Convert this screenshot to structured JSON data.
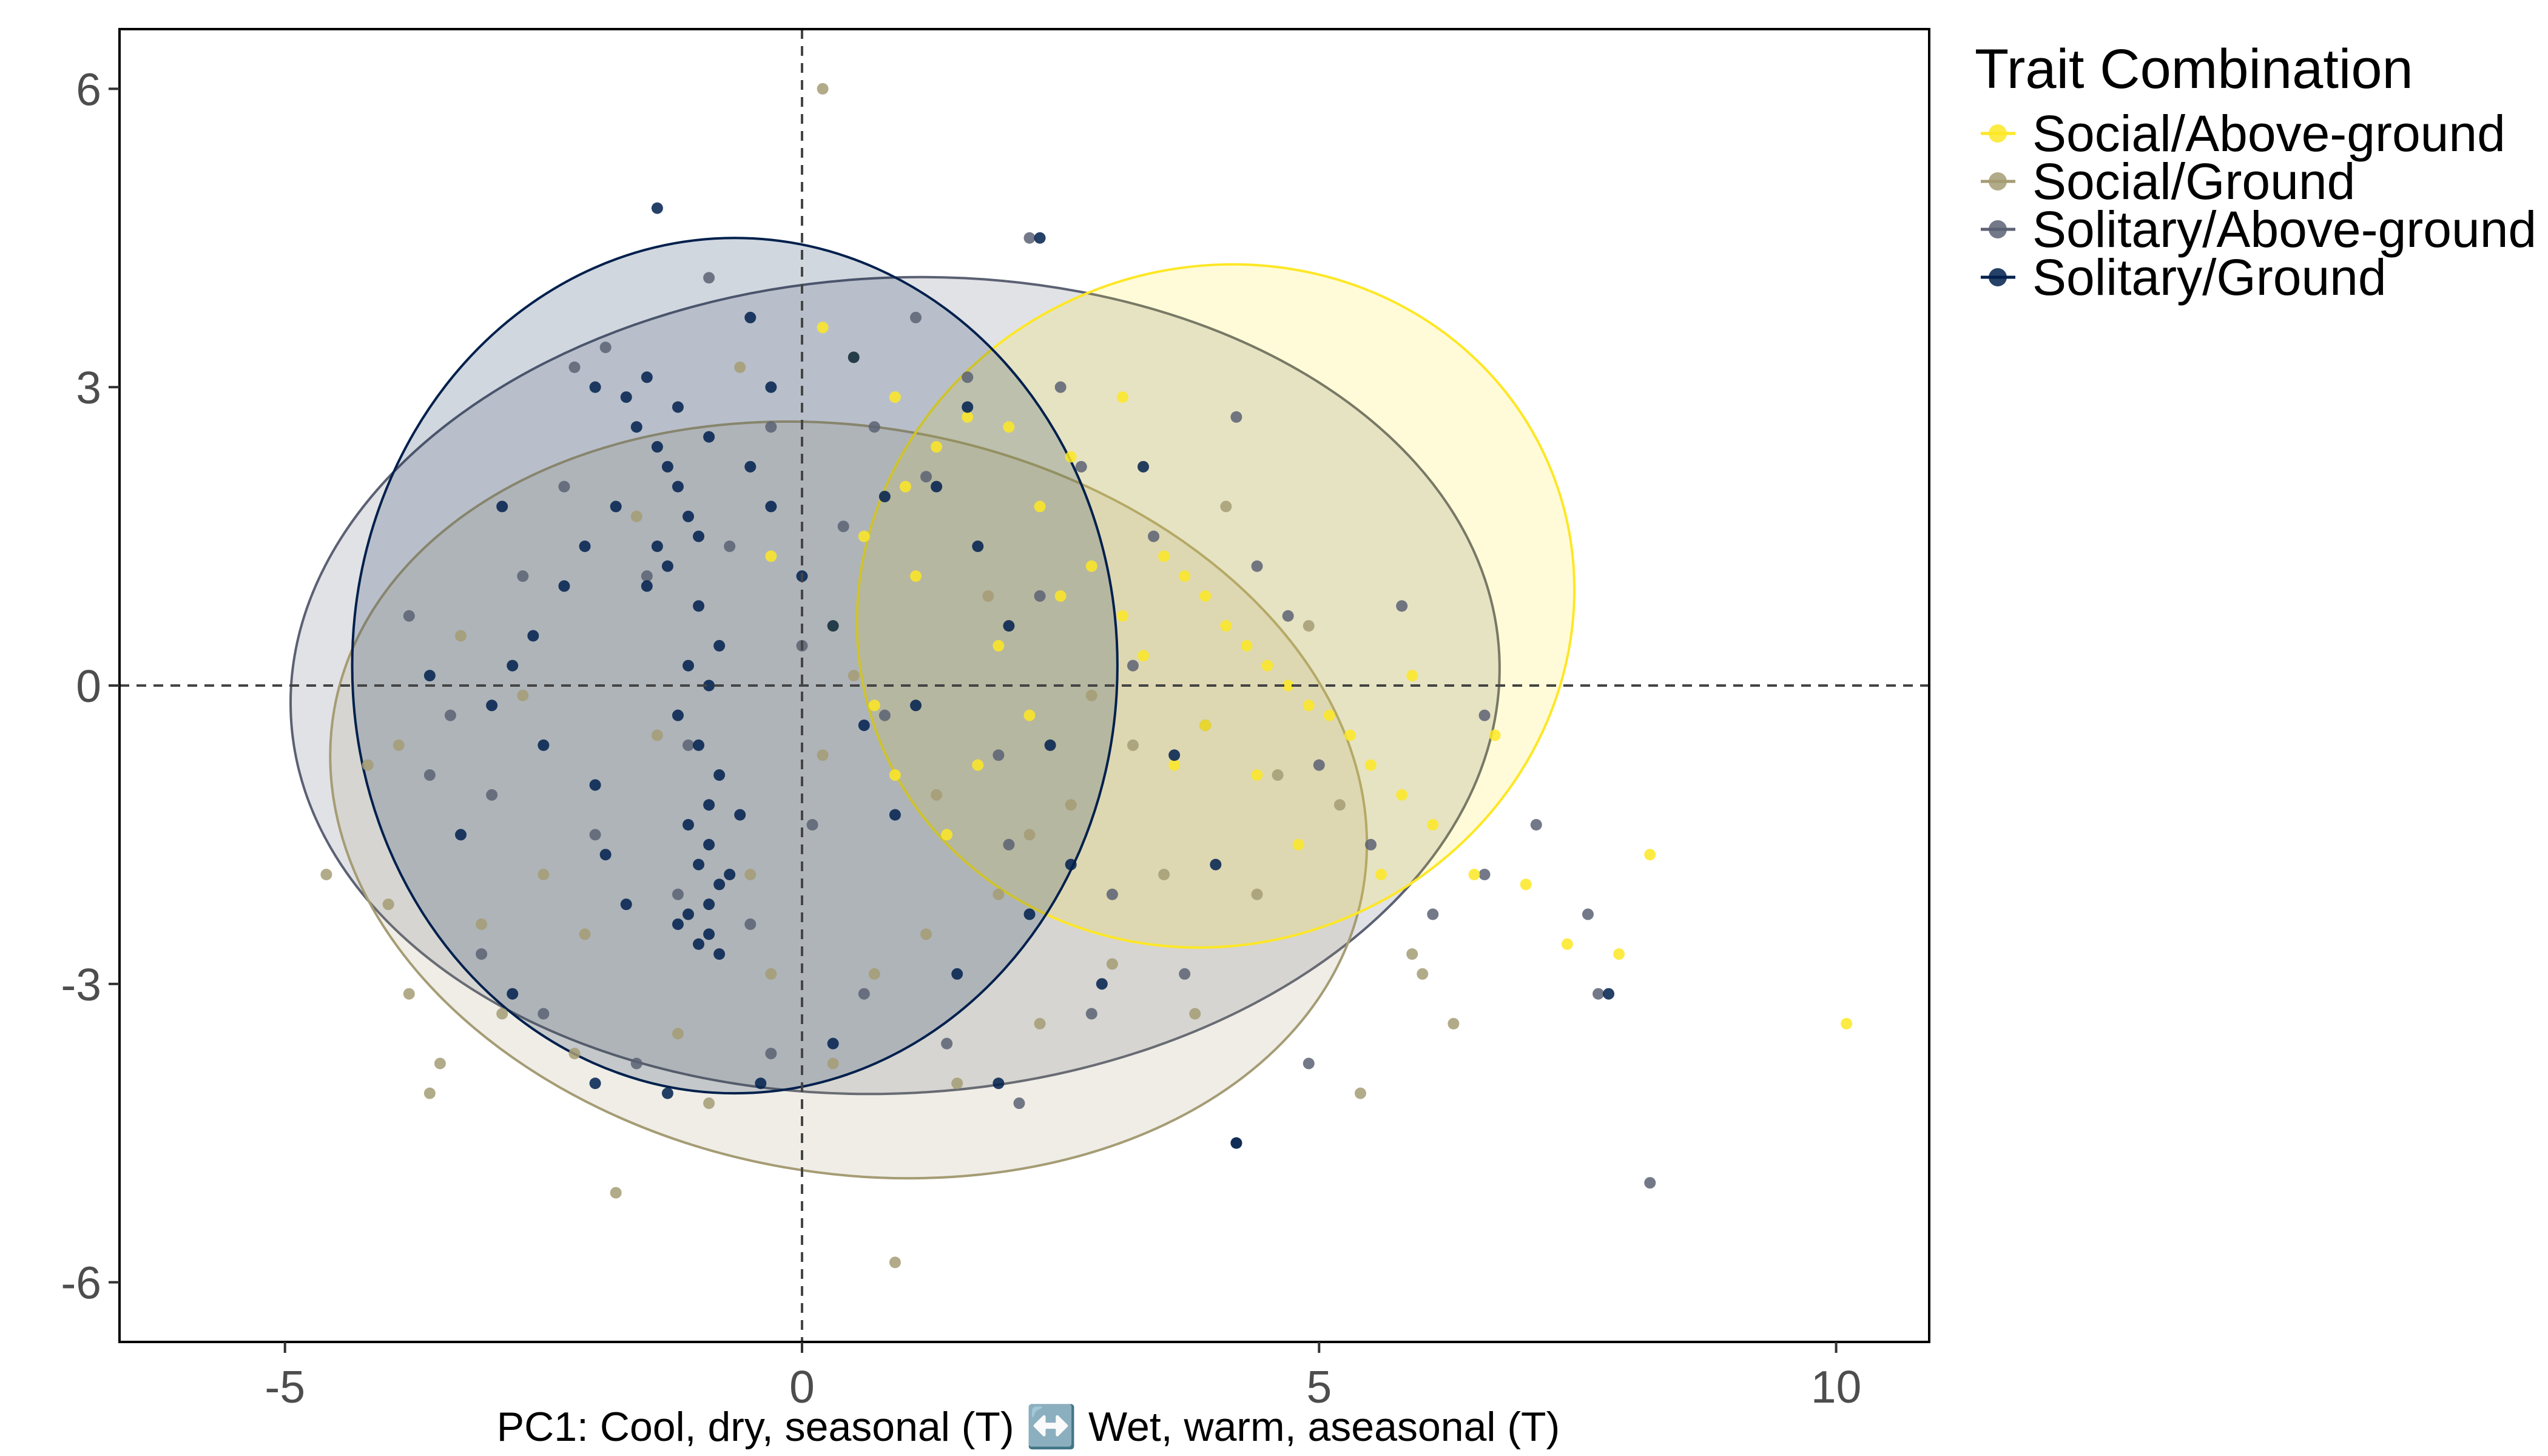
{
  "chart_data": {
    "type": "scatter",
    "xlabel": "PC1: Cool, dry, seasonal (T) ↔️ Wet, warm, aseasonal (T)",
    "ylabel": "",
    "xlim": [
      -6.6,
      10.9
    ],
    "ylim": [
      -6.6,
      6.6
    ],
    "x_ticks": [
      -5,
      0,
      5,
      10
    ],
    "y_ticks": [
      -6,
      -3,
      0,
      3,
      6
    ],
    "x_tick_labels": [
      "-5",
      "0",
      "5",
      "10"
    ],
    "y_tick_labels": [
      "-6",
      "-3",
      "0",
      "3",
      "6"
    ],
    "reference_lines": {
      "x": 0,
      "y": 0,
      "style": "dashed"
    },
    "grid": false,
    "legend": {
      "title": "Trait Combination",
      "placement": "right",
      "entries": [
        "Social/Above-ground",
        "Social/Ground",
        "Solitary/Above-ground",
        "Solitary/Ground"
      ]
    },
    "series": [
      {
        "name": "Social/Above-ground",
        "color": "#fde725",
        "ellipse": {
          "cx": 4.0,
          "cy": 0.8,
          "rx": 3.5,
          "ry": 3.4,
          "angle_deg": -22
        },
        "points": [
          [
            3.5,
            1.3
          ],
          [
            3.7,
            1.1
          ],
          [
            3.9,
            0.9
          ],
          [
            4.1,
            0.6
          ],
          [
            4.3,
            0.4
          ],
          [
            4.5,
            0.2
          ],
          [
            4.7,
            0.0
          ],
          [
            4.9,
            -0.2
          ],
          [
            5.1,
            -0.3
          ],
          [
            5.3,
            -0.5
          ],
          [
            5.5,
            -0.8
          ],
          [
            5.8,
            -1.1
          ],
          [
            6.1,
            -1.4
          ],
          [
            2.3,
            1.8
          ],
          [
            2.6,
            2.3
          ],
          [
            2.0,
            2.6
          ],
          [
            1.6,
            2.7
          ],
          [
            1.3,
            2.4
          ],
          [
            1.0,
            2.0
          ],
          [
            0.6,
            1.5
          ],
          [
            0.3,
            0.6
          ],
          [
            0.7,
            -0.2
          ],
          [
            0.9,
            -0.9
          ],
          [
            1.4,
            -1.5
          ],
          [
            3.1,
            2.9
          ],
          [
            3.3,
            0.3
          ],
          [
            2.8,
            1.2
          ],
          [
            3.6,
            -0.8
          ],
          [
            4.4,
            -0.9
          ],
          [
            6.5,
            -1.9
          ],
          [
            7.0,
            -2.0
          ],
          [
            7.9,
            -2.7
          ],
          [
            8.2,
            -1.7
          ],
          [
            10.1,
            -3.4
          ],
          [
            7.4,
            -2.6
          ],
          [
            6.7,
            -0.5
          ],
          [
            5.9,
            0.1
          ],
          [
            2.2,
            -0.3
          ],
          [
            1.9,
            0.4
          ],
          [
            0.9,
            2.9
          ],
          [
            -0.3,
            1.3
          ],
          [
            0.2,
            3.6
          ],
          [
            1.7,
            -0.8
          ],
          [
            4.8,
            -1.6
          ],
          [
            3.9,
            -0.4
          ],
          [
            3.1,
            0.7
          ],
          [
            2.5,
            0.9
          ],
          [
            0.5,
            3.3
          ],
          [
            1.1,
            1.1
          ],
          [
            5.6,
            -1.9
          ]
        ]
      },
      {
        "name": "Social/Ground",
        "color": "#a59c74",
        "ellipse": {
          "cx": 0.45,
          "cy": -1.15,
          "rx": 5.05,
          "ry": 3.75,
          "angle_deg": 10
        },
        "points": [
          [
            -4.2,
            -0.8
          ],
          [
            -3.8,
            -3.1
          ],
          [
            -3.5,
            -3.8
          ],
          [
            -3.6,
            -4.1
          ],
          [
            -2.5,
            -1.9
          ],
          [
            -2.1,
            -2.5
          ],
          [
            -1.8,
            -5.1
          ],
          [
            -1.2,
            -3.5
          ],
          [
            -0.5,
            -1.9
          ],
          [
            0.2,
            -0.7
          ],
          [
            0.9,
            -5.8
          ],
          [
            1.2,
            -2.5
          ],
          [
            1.9,
            -2.1
          ],
          [
            2.6,
            -1.2
          ],
          [
            3.0,
            -2.8
          ],
          [
            3.8,
            -3.3
          ],
          [
            4.4,
            -2.1
          ],
          [
            5.2,
            -1.2
          ],
          [
            5.9,
            -2.7
          ],
          [
            6.0,
            -2.9
          ],
          [
            6.3,
            -3.4
          ],
          [
            5.4,
            -4.1
          ],
          [
            4.9,
            0.6
          ],
          [
            4.1,
            1.8
          ],
          [
            3.2,
            -0.6
          ],
          [
            2.3,
            -3.4
          ],
          [
            1.5,
            -4.0
          ],
          [
            0.3,
            -3.8
          ],
          [
            -0.9,
            -4.2
          ],
          [
            -2.9,
            -3.3
          ],
          [
            -3.1,
            -2.4
          ],
          [
            -2.7,
            -0.1
          ],
          [
            -3.3,
            0.5
          ],
          [
            -1.6,
            1.7
          ],
          [
            -0.6,
            3.2
          ],
          [
            0.5,
            0.1
          ],
          [
            1.8,
            0.9
          ],
          [
            2.8,
            -0.1
          ],
          [
            -4.6,
            -1.9
          ],
          [
            -4.0,
            -2.2
          ],
          [
            -3.9,
            -0.6
          ],
          [
            0.7,
            -2.9
          ],
          [
            -1.4,
            -0.5
          ],
          [
            2.2,
            -1.5
          ],
          [
            3.5,
            -1.9
          ],
          [
            0.2,
            6.0
          ],
          [
            -2.2,
            -3.7
          ],
          [
            1.3,
            -1.1
          ],
          [
            -0.3,
            -2.9
          ],
          [
            4.6,
            -0.9
          ]
        ]
      },
      {
        "name": "Solitary/Above-ground",
        "color": "#5b6173",
        "ellipse": {
          "cx": 0.9,
          "cy": 0.0,
          "rx": 5.85,
          "ry": 4.1,
          "angle_deg": -3
        },
        "points": [
          [
            -3.8,
            0.7
          ],
          [
            -3.4,
            -0.3
          ],
          [
            -3.0,
            -1.1
          ],
          [
            -2.7,
            1.1
          ],
          [
            -2.3,
            2.0
          ],
          [
            -2.2,
            3.2
          ],
          [
            -1.9,
            3.4
          ],
          [
            -1.5,
            1.1
          ],
          [
            -1.1,
            -0.6
          ],
          [
            -0.7,
            1.4
          ],
          [
            -0.3,
            2.6
          ],
          [
            0.1,
            -1.4
          ],
          [
            0.4,
            1.6
          ],
          [
            0.8,
            -0.3
          ],
          [
            1.2,
            2.1
          ],
          [
            1.6,
            3.1
          ],
          [
            2.0,
            -1.6
          ],
          [
            2.3,
            0.9
          ],
          [
            2.7,
            2.2
          ],
          [
            3.0,
            -2.1
          ],
          [
            3.4,
            1.5
          ],
          [
            3.9,
            -0.4
          ],
          [
            4.2,
            2.7
          ],
          [
            4.7,
            0.7
          ],
          [
            5.0,
            -0.8
          ],
          [
            5.5,
            -1.6
          ],
          [
            6.1,
            -2.3
          ],
          [
            6.6,
            -1.9
          ],
          [
            7.1,
            -1.4
          ],
          [
            7.6,
            -2.3
          ],
          [
            7.7,
            -3.1
          ],
          [
            8.2,
            -5.0
          ],
          [
            4.2,
            -4.6
          ],
          [
            4.9,
            -3.8
          ],
          [
            3.7,
            -2.9
          ],
          [
            2.8,
            -3.3
          ],
          [
            2.1,
            -4.2
          ],
          [
            1.4,
            -3.6
          ],
          [
            0.6,
            -3.1
          ],
          [
            -0.3,
            -3.7
          ],
          [
            -1.6,
            -3.8
          ],
          [
            -2.5,
            -3.3
          ],
          [
            -3.1,
            -2.7
          ],
          [
            -3.6,
            -0.9
          ],
          [
            -0.9,
            4.1
          ],
          [
            1.1,
            3.7
          ],
          [
            2.2,
            4.5
          ],
          [
            -1.2,
            -2.1
          ],
          [
            0.7,
            2.6
          ],
          [
            3.2,
            0.2
          ],
          [
            4.4,
            1.2
          ],
          [
            5.8,
            0.8
          ],
          [
            6.6,
            -0.3
          ],
          [
            1.9,
            -0.7
          ],
          [
            -2.0,
            -1.5
          ],
          [
            0.0,
            0.4
          ],
          [
            2.5,
            3.0
          ],
          [
            -0.5,
            -2.4
          ]
        ]
      },
      {
        "name": "Solitary/Ground",
        "color": "#00204d",
        "ellipse": {
          "cx": -0.65,
          "cy": 0.2,
          "rx": 3.7,
          "ry": 4.3,
          "angle_deg": 0
        },
        "points": [
          [
            -1.6,
            2.6
          ],
          [
            -1.4,
            2.4
          ],
          [
            -1.3,
            2.2
          ],
          [
            -1.2,
            2.0
          ],
          [
            -1.1,
            1.7
          ],
          [
            -1.0,
            1.5
          ],
          [
            -1.3,
            1.2
          ],
          [
            -1.5,
            1.0
          ],
          [
            -1.7,
            2.9
          ],
          [
            -1.5,
            3.1
          ],
          [
            -1.2,
            2.8
          ],
          [
            -0.9,
            2.5
          ],
          [
            -1.8,
            1.8
          ],
          [
            -1.4,
            1.4
          ],
          [
            -1.0,
            0.8
          ],
          [
            -0.8,
            0.4
          ],
          [
            -1.1,
            0.2
          ],
          [
            -0.9,
            0.0
          ],
          [
            -1.2,
            -0.3
          ],
          [
            -1.0,
            -0.6
          ],
          [
            -0.8,
            -0.9
          ],
          [
            -0.9,
            -1.2
          ],
          [
            -1.1,
            -1.4
          ],
          [
            -0.9,
            -1.6
          ],
          [
            -1.0,
            -1.8
          ],
          [
            -0.8,
            -2.0
          ],
          [
            -0.9,
            -2.2
          ],
          [
            -1.1,
            -2.3
          ],
          [
            -0.9,
            -2.5
          ],
          [
            -0.8,
            -2.7
          ],
          [
            -1.0,
            -2.6
          ],
          [
            -1.2,
            -2.4
          ],
          [
            -0.7,
            -1.9
          ],
          [
            -0.6,
            -1.3
          ],
          [
            -2.6,
            0.5
          ],
          [
            -2.8,
            0.2
          ],
          [
            -3.0,
            -0.2
          ],
          [
            -2.5,
            -0.6
          ],
          [
            -2.3,
            1.0
          ],
          [
            -2.1,
            1.4
          ],
          [
            -2.0,
            -1.0
          ],
          [
            -1.9,
            -1.7
          ],
          [
            -1.7,
            -2.2
          ],
          [
            -0.5,
            2.2
          ],
          [
            -0.3,
            1.8
          ],
          [
            0.0,
            1.1
          ],
          [
            0.3,
            0.6
          ],
          [
            0.6,
            -0.4
          ],
          [
            0.9,
            -1.3
          ],
          [
            1.3,
            2.0
          ],
          [
            1.7,
            1.4
          ],
          [
            2.0,
            0.6
          ],
          [
            2.4,
            -0.6
          ],
          [
            2.6,
            -1.8
          ],
          [
            2.2,
            -2.3
          ],
          [
            1.5,
            -2.9
          ],
          [
            0.3,
            -3.6
          ],
          [
            -0.4,
            -4.0
          ],
          [
            -1.3,
            -4.1
          ],
          [
            -2.0,
            -4.0
          ],
          [
            -2.8,
            -3.1
          ],
          [
            -3.3,
            -1.5
          ],
          [
            -3.6,
            0.1
          ],
          [
            -2.9,
            1.8
          ],
          [
            -2.0,
            3.0
          ],
          [
            -1.4,
            4.8
          ],
          [
            -0.5,
            3.7
          ],
          [
            0.5,
            3.3
          ],
          [
            1.6,
            2.8
          ],
          [
            2.3,
            4.5
          ],
          [
            3.3,
            2.2
          ],
          [
            3.6,
            -0.7
          ],
          [
            4.0,
            -1.8
          ],
          [
            2.9,
            -3.0
          ],
          [
            1.9,
            -4.0
          ],
          [
            4.2,
            -4.6
          ],
          [
            7.8,
            -3.1
          ],
          [
            -0.3,
            3.0
          ],
          [
            0.8,
            1.9
          ],
          [
            1.1,
            -0.2
          ]
        ]
      }
    ]
  }
}
